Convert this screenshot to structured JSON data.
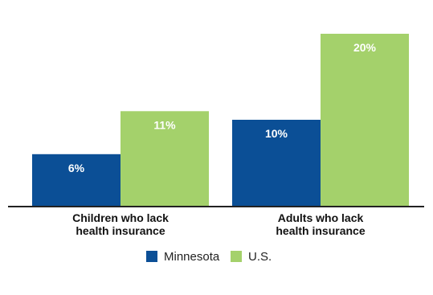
{
  "chart_data": {
    "type": "bar",
    "categories": [
      [
        "Children who lack",
        "health insurance"
      ],
      [
        "Adults who lack",
        "health insurance"
      ]
    ],
    "series": [
      {
        "name": "Minnesota",
        "values": [
          6,
          10
        ],
        "labels": [
          "6%",
          "10%"
        ],
        "color": "#0b4f96"
      },
      {
        "name": "U.S.",
        "values": [
          11,
          20
        ],
        "labels": [
          "11%",
          "20%"
        ],
        "color": "#a4d16b"
      }
    ],
    "ylim": [
      0,
      20
    ],
    "grid": false,
    "legend": "bottom-center",
    "axis_color": "#222222"
  }
}
